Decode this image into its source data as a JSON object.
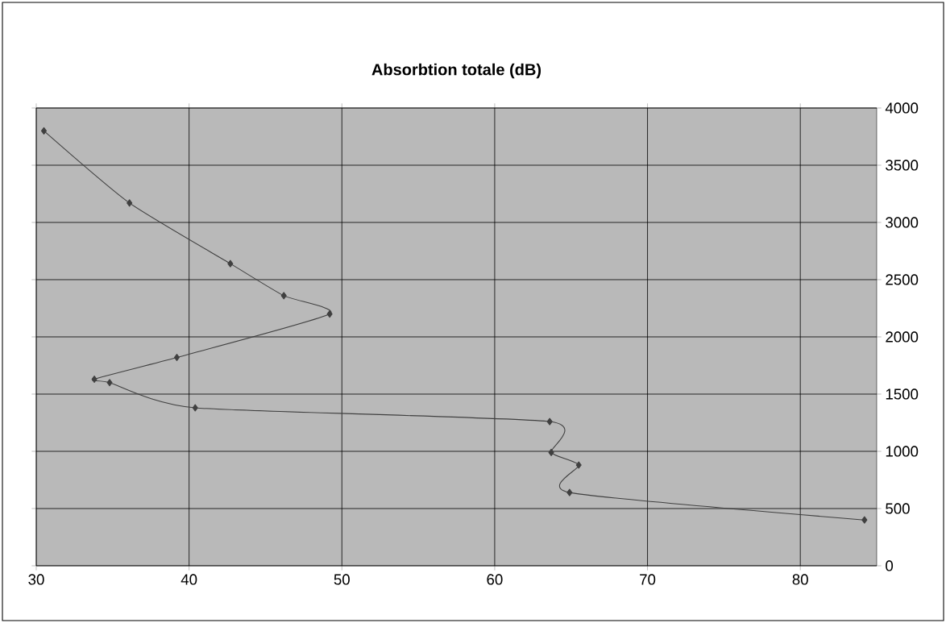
{
  "chart_data": {
    "type": "line",
    "title": "Absorbtion totale (dB)",
    "x": [
      30.5,
      36.1,
      42.7,
      46.2,
      49.2,
      39.2,
      33.8,
      34.8,
      40.4,
      63.6,
      63.7,
      65.5,
      64.9,
      84.2
    ],
    "series": [
      {
        "color": "#404040",
        "values": [
          3800,
          3170,
          2640,
          2360,
          2200,
          1820,
          1630,
          1600,
          1380,
          1260,
          990,
          880,
          640,
          400
        ]
      }
    ],
    "xlim": [
      30,
      85
    ],
    "xticks": [
      30,
      40,
      50,
      60,
      70,
      80
    ],
    "ylim": [
      0,
      4000
    ],
    "yticks": [
      0,
      500,
      1000,
      1500,
      2000,
      2500,
      3000,
      3500,
      4000
    ],
    "grid": true,
    "marker": "diamond",
    "line_style": "solid"
  }
}
